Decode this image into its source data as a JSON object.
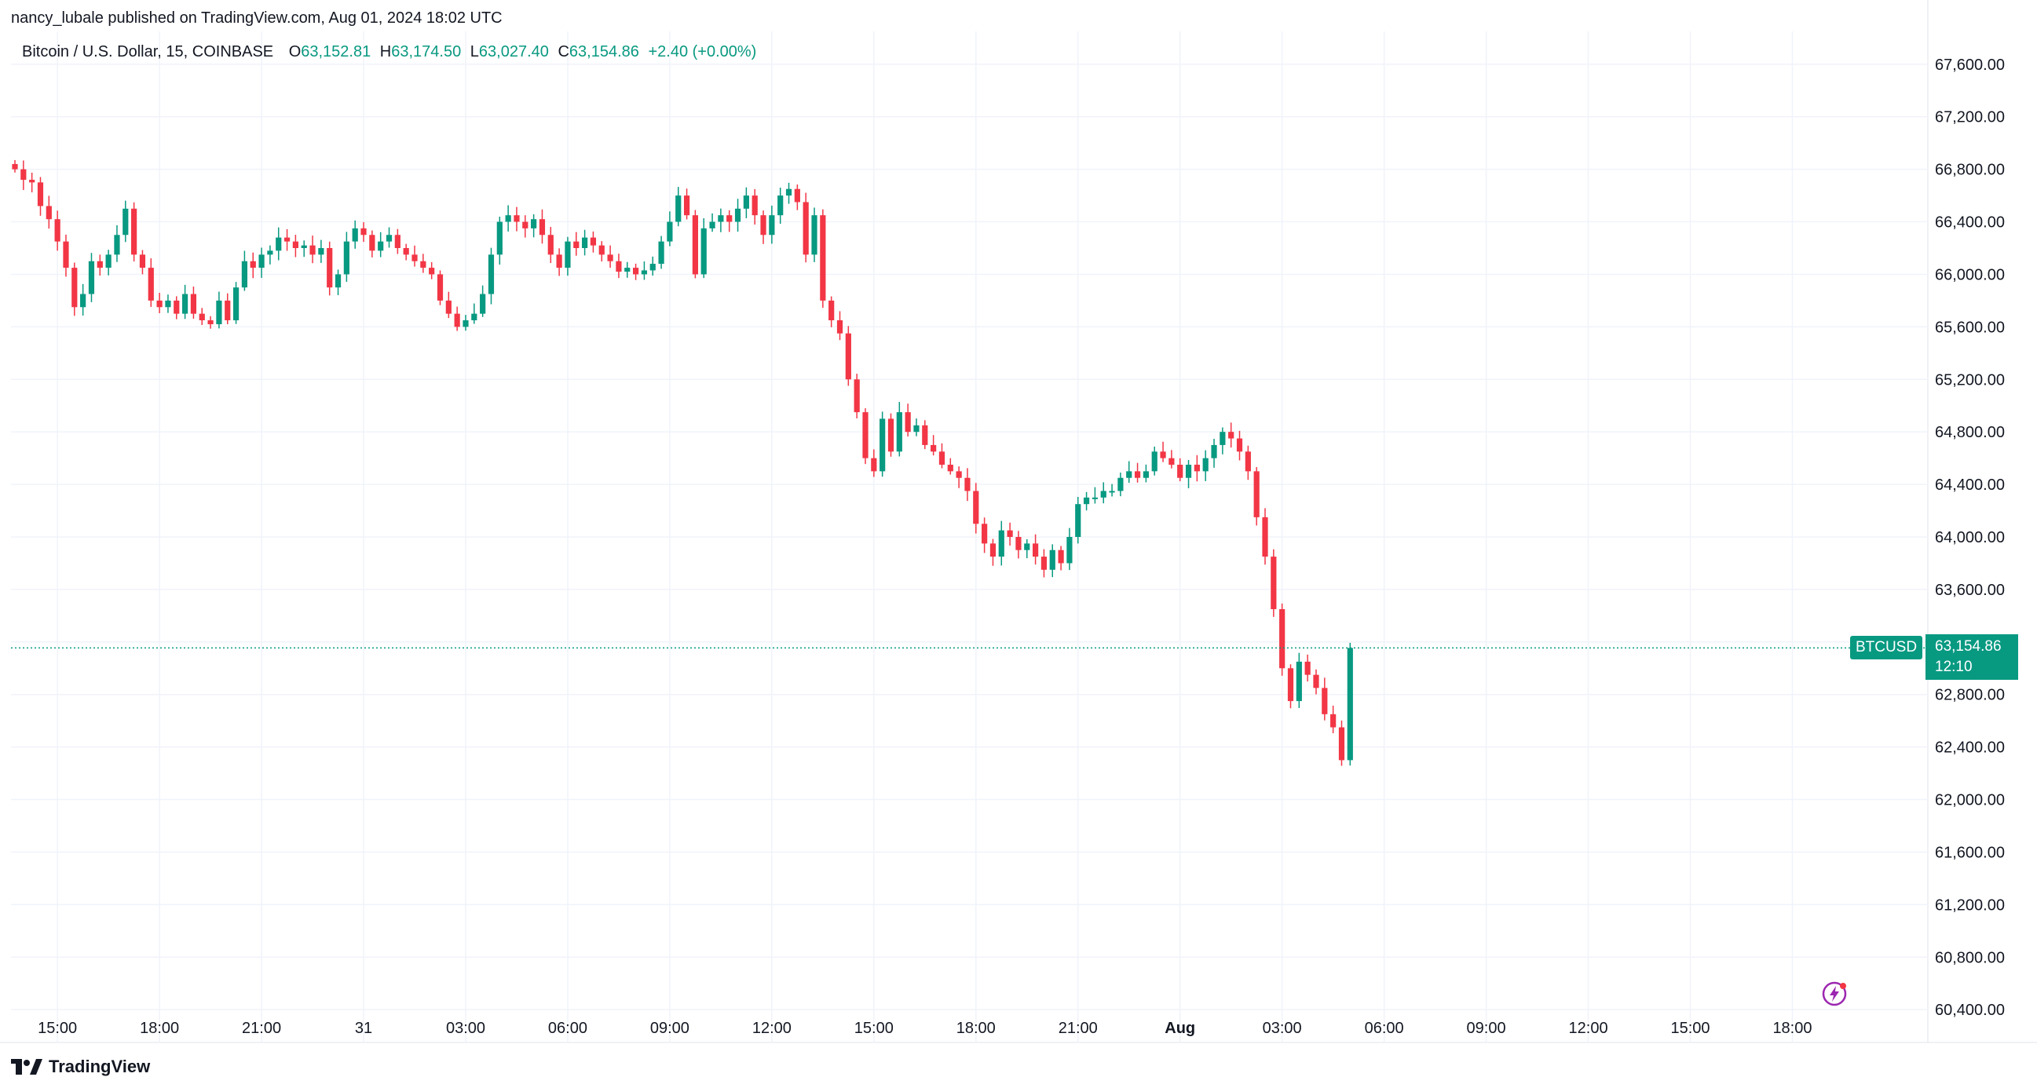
{
  "publisher_line": "nancy_lubale published on TradingView.com, Aug 01, 2024 18:02 UTC",
  "legend": {
    "symbol": "Bitcoin / U.S. Dollar, 15, COINBASE",
    "o_label": "O",
    "o_value": "63,152.81",
    "h_label": "H",
    "h_value": "63,174.50",
    "l_label": "L",
    "l_value": "63,027.40",
    "c_label": "C",
    "c_value": "63,154.86",
    "change": "+2.40 (+0.00%)"
  },
  "price_badge": {
    "ticker": "BTCUSD",
    "price": "63,154.86",
    "countdown": "12:10"
  },
  "brand": "TradingView",
  "colors": {
    "up": "#089981",
    "down": "#F23645",
    "grid": "#F0F3FA",
    "axis_text": "#131722",
    "last_line": "#089981"
  },
  "icons": {
    "brand_logo": "tradingview-logo-icon",
    "flash": "lightning-icon"
  },
  "chart_data": {
    "type": "candlestick",
    "interval": "15",
    "y_ticks": [
      60400,
      60800,
      61200,
      61600,
      62000,
      62400,
      62800,
      63200,
      63600,
      64000,
      64400,
      64800,
      65200,
      65600,
      66000,
      66400,
      66800,
      67200,
      67600
    ],
    "y_tick_labels": [
      "60,400.00",
      "60,800.00",
      "61,200.00",
      "61,600.00",
      "62,000.00",
      "62,400.00",
      "62,800.00",
      "63,200.00",
      "63,600.00",
      "64,000.00",
      "64,400.00",
      "64,800.00",
      "65,200.00",
      "65,600.00",
      "66,000.00",
      "66,400.00",
      "66,800.00",
      "67,200.00",
      "67,600.00"
    ],
    "ylim": [
      60150,
      67850
    ],
    "x_ticks": [
      {
        "label": "15:00",
        "bar": 5,
        "bold": false
      },
      {
        "label": "18:00",
        "bar": 17,
        "bold": false
      },
      {
        "label": "21:00",
        "bar": 29,
        "bold": false
      },
      {
        "label": "31",
        "bar": 41,
        "bold": false
      },
      {
        "label": "03:00",
        "bar": 53,
        "bold": false
      },
      {
        "label": "06:00",
        "bar": 65,
        "bold": false
      },
      {
        "label": "09:00",
        "bar": 77,
        "bold": false
      },
      {
        "label": "12:00",
        "bar": 89,
        "bold": false
      },
      {
        "label": "15:00",
        "bar": 101,
        "bold": false
      },
      {
        "label": "18:00",
        "bar": 113,
        "bold": false
      },
      {
        "label": "21:00",
        "bar": 125,
        "bold": false
      },
      {
        "label": "Aug",
        "bar": 137,
        "bold": true
      },
      {
        "label": "03:00",
        "bar": 149,
        "bold": false
      },
      {
        "label": "06:00",
        "bar": 161,
        "bold": false
      },
      {
        "label": "09:00",
        "bar": 173,
        "bold": false
      },
      {
        "label": "12:00",
        "bar": 185,
        "bold": false
      },
      {
        "label": "15:00",
        "bar": 197,
        "bold": false
      },
      {
        "label": "18:00",
        "bar": 209,
        "bold": false
      }
    ],
    "last_price": 63154.86,
    "closes": [
      66800,
      66720,
      66700,
      66520,
      66420,
      66250,
      66050,
      65750,
      65850,
      66100,
      66050,
      66150,
      66300,
      66500,
      66150,
      66050,
      65800,
      65750,
      65800,
      65700,
      65850,
      65700,
      65650,
      65620,
      65800,
      65650,
      65900,
      66100,
      66050,
      66150,
      66180,
      66280,
      66250,
      66200,
      66220,
      66150,
      66200,
      65900,
      66000,
      66250,
      66350,
      66300,
      66180,
      66250,
      66300,
      66200,
      66150,
      66100,
      66050,
      66000,
      65800,
      65700,
      65600,
      65650,
      65700,
      65850,
      66150,
      66400,
      66450,
      66400,
      66350,
      66420,
      66300,
      66150,
      66050,
      66250,
      66200,
      66280,
      66220,
      66150,
      66100,
      66020,
      66050,
      66000,
      66030,
      66080,
      66250,
      66400,
      66600,
      66450,
      66000,
      66350,
      66400,
      66450,
      66400,
      66500,
      66600,
      66450,
      66300,
      66450,
      66600,
      66650,
      66550,
      66150,
      66450,
      65800,
      65650,
      65550,
      65200,
      64950,
      64600,
      64500,
      64900,
      64650,
      64950,
      64800,
      64850,
      64700,
      64650,
      64550,
      64500,
      64450,
      64350,
      64100,
      63950,
      63850,
      64050,
      64000,
      63900,
      63950,
      63850,
      63750,
      63900,
      63800,
      64000,
      64250,
      64300,
      64300,
      64350,
      64350,
      64450,
      64500,
      64450,
      64500,
      64650,
      64600,
      64550,
      64450,
      64550,
      64500,
      64600,
      64700,
      64800,
      64750,
      64650,
      64500,
      64150,
      63850,
      63450,
      63000,
      62750,
      63050,
      62950,
      62850,
      62650,
      62550,
      62300,
      63154.86
    ]
  }
}
